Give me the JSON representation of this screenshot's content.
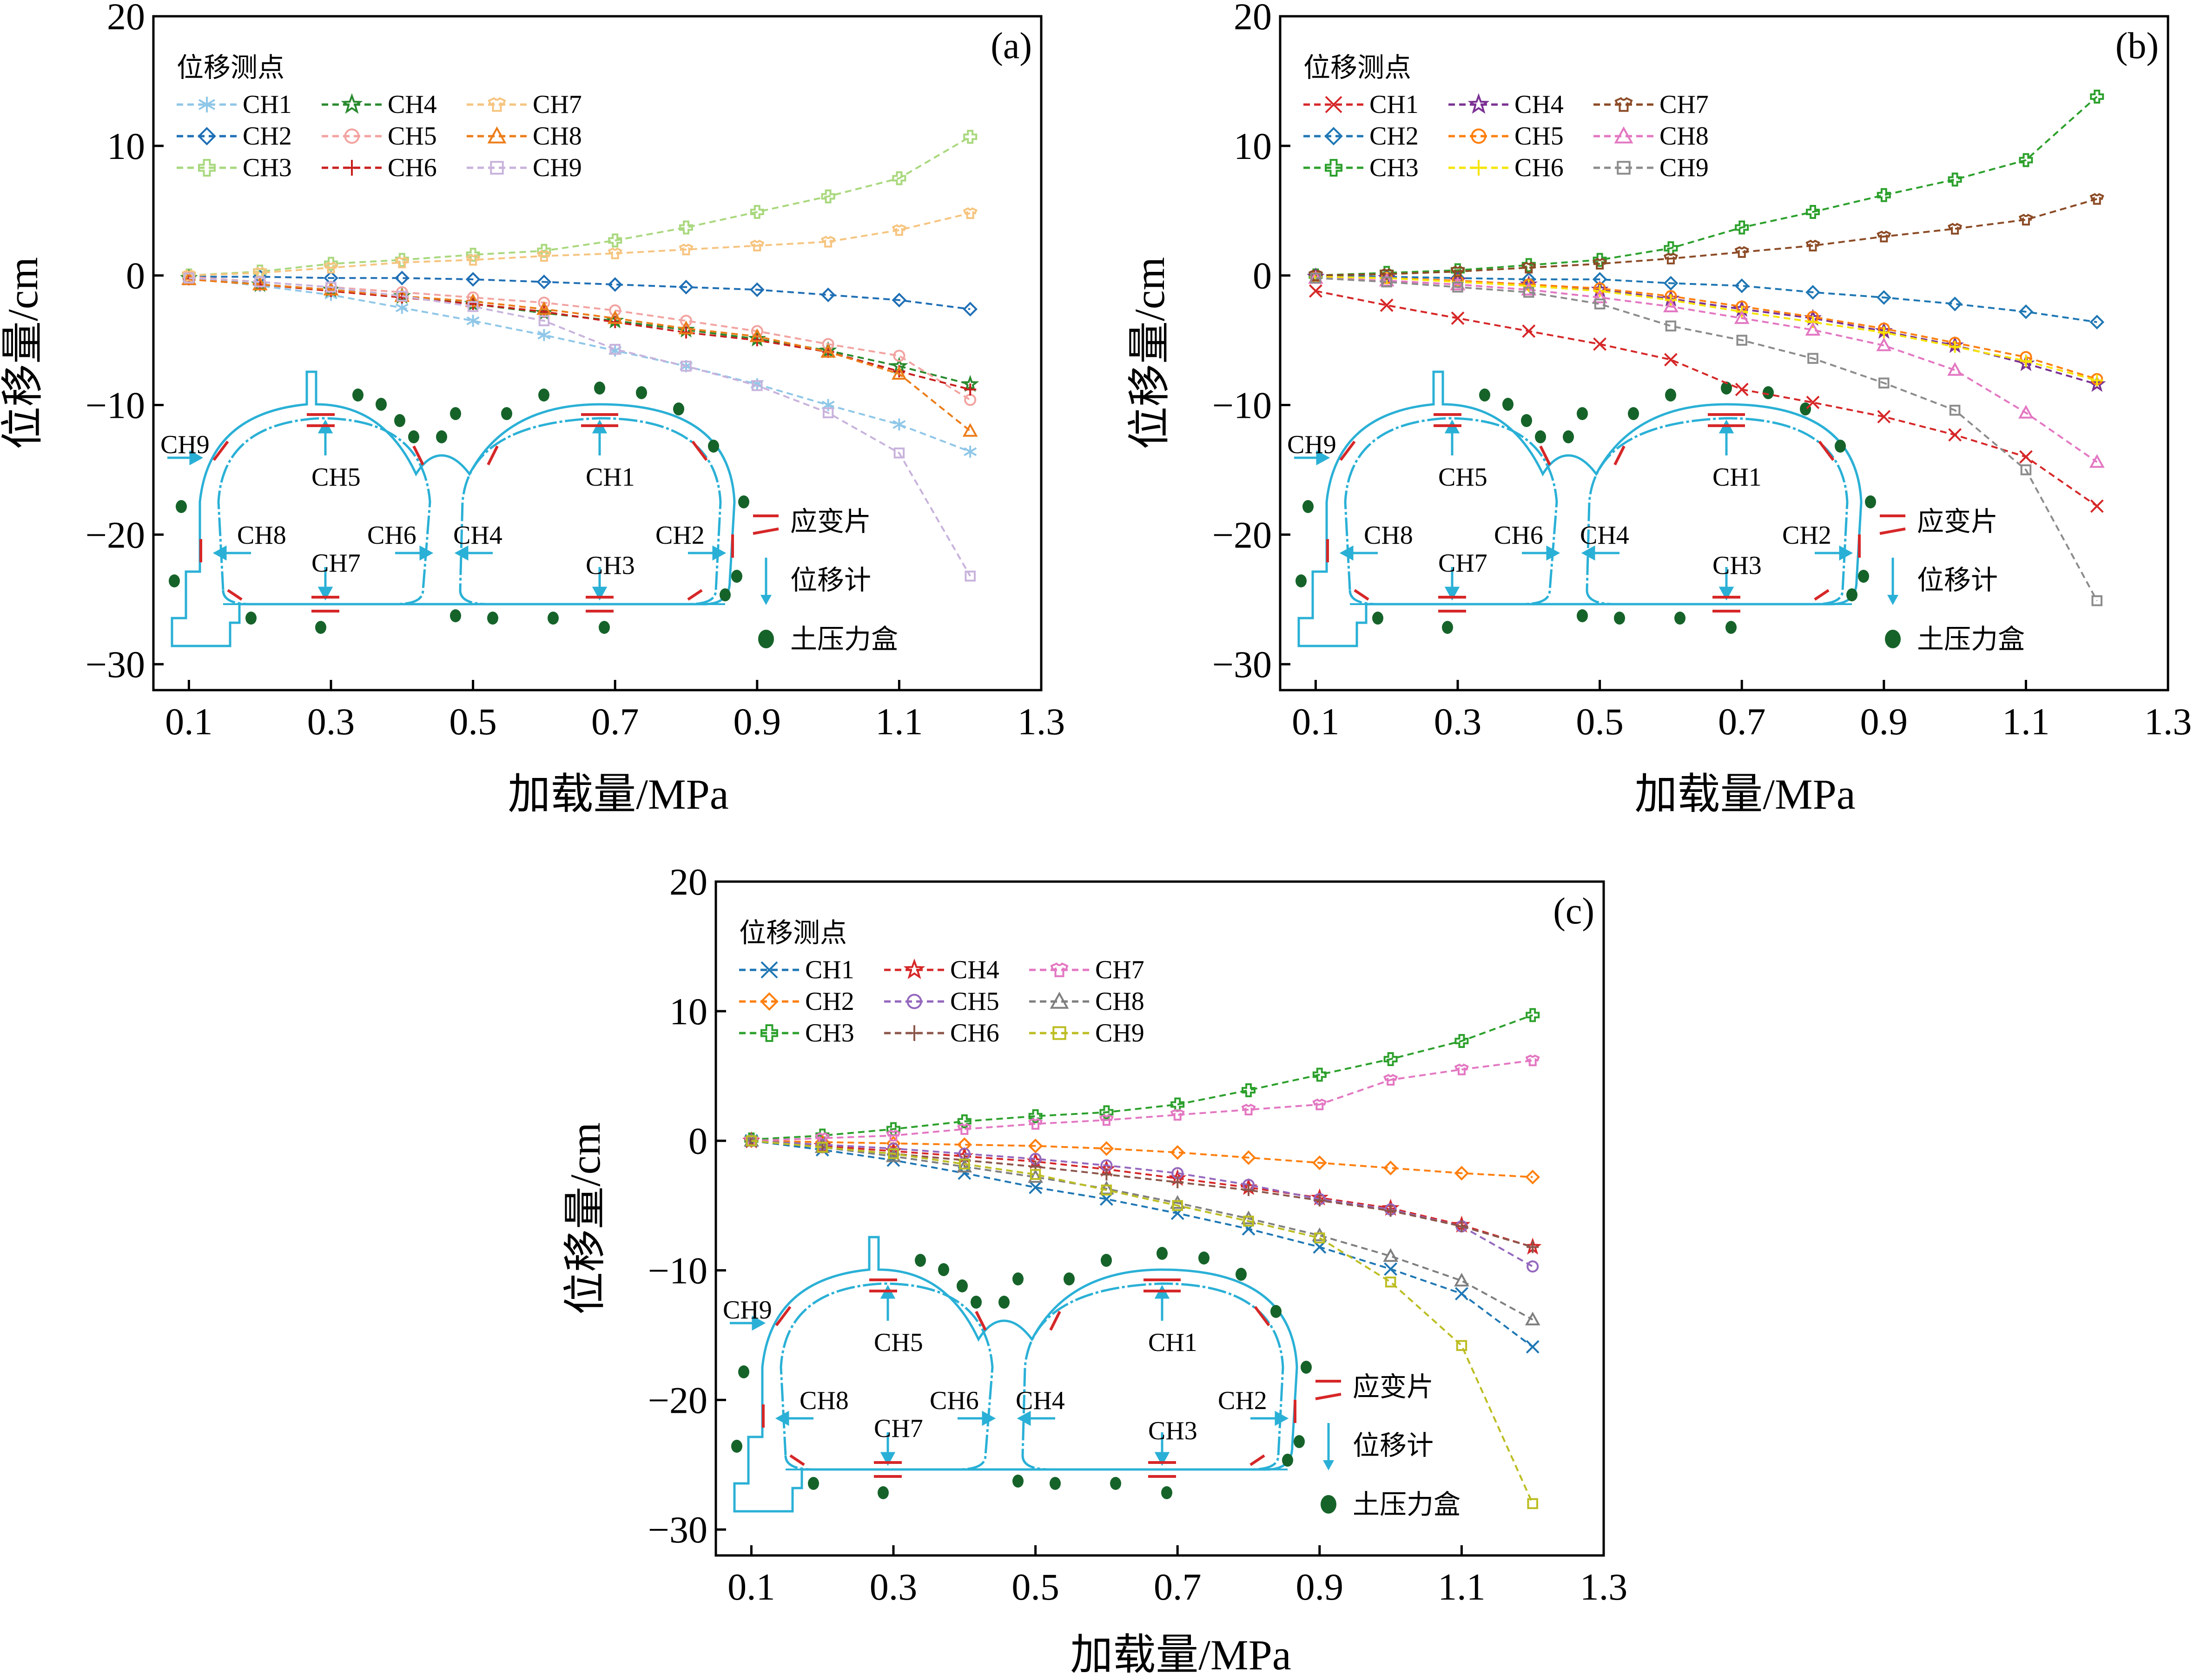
{
  "chart_data": [
    {
      "panel": "(a)",
      "type": "line",
      "xlabel": "加载量/MPa",
      "ylabel": "位移量/cm",
      "xlim": [
        0.05,
        1.3
      ],
      "ylim": [
        -32,
        20
      ],
      "xticks": [
        "0.1",
        "0.3",
        "0.5",
        "0.7",
        "0.9",
        "1.1",
        "1.3"
      ],
      "yticks": [
        "20",
        "10",
        "0",
        "−10",
        "−20",
        "−30"
      ],
      "legend_title": "位移测点",
      "x": [
        0.1,
        0.2,
        0.3,
        0.4,
        0.5,
        0.6,
        0.7,
        0.8,
        0.9,
        1.0,
        1.1,
        1.2
      ],
      "series": [
        {
          "name": "CH1",
          "color": "#8fc7e8",
          "marker": "asterisk",
          "values": [
            -0.2,
            -0.8,
            -1.5,
            -2.5,
            -3.5,
            -4.6,
            -5.8,
            -7.0,
            -8.4,
            -10.0,
            -11.5,
            -13.6
          ]
        },
        {
          "name": "CH2",
          "color": "#1f6fb5",
          "marker": "diamond",
          "values": [
            -0.1,
            -0.1,
            -0.2,
            -0.2,
            -0.3,
            -0.5,
            -0.7,
            -0.9,
            -1.1,
            -1.5,
            -1.9,
            -2.6
          ]
        },
        {
          "name": "CH3",
          "color": "#a9d87e",
          "marker": "plus",
          "values": [
            0.0,
            0.3,
            0.9,
            1.2,
            1.6,
            1.9,
            2.7,
            3.7,
            4.9,
            6.1,
            7.5,
            10.7
          ]
        },
        {
          "name": "CH4",
          "color": "#2a8a2f",
          "marker": "star",
          "values": [
            -0.2,
            -0.7,
            -1.1,
            -1.6,
            -2.2,
            -2.9,
            -3.5,
            -4.2,
            -4.9,
            -5.8,
            -7.0,
            -8.4
          ]
        },
        {
          "name": "CH5",
          "color": "#f2a3a0",
          "marker": "circle",
          "values": [
            -0.1,
            -0.5,
            -0.9,
            -1.3,
            -1.7,
            -2.1,
            -2.7,
            -3.5,
            -4.3,
            -5.3,
            -6.2,
            -9.6
          ]
        },
        {
          "name": "CH6",
          "color": "#c7201e",
          "marker": "plus-thin",
          "values": [
            -0.3,
            -0.7,
            -1.2,
            -1.7,
            -2.2,
            -2.8,
            -3.6,
            -4.4,
            -5.0,
            -5.9,
            -7.4,
            -8.8
          ]
        },
        {
          "name": "CH7",
          "color": "#f6c47f",
          "marker": "tshirt",
          "values": [
            0.0,
            0.2,
            0.6,
            1.0,
            1.2,
            1.5,
            1.7,
            2.0,
            2.3,
            2.6,
            3.5,
            4.8
          ]
        },
        {
          "name": "CH8",
          "color": "#ec7d1a",
          "marker": "triangle",
          "values": [
            -0.3,
            -0.7,
            -1.1,
            -1.6,
            -2.0,
            -2.6,
            -3.3,
            -4.1,
            -4.7,
            -5.9,
            -7.6,
            -12.0
          ]
        },
        {
          "name": "CH9",
          "color": "#c8b3dc",
          "marker": "square",
          "values": [
            -0.2,
            -0.5,
            -0.9,
            -1.6,
            -2.4,
            -3.5,
            -5.7,
            -7.0,
            -8.5,
            -10.6,
            -13.7,
            -23.2
          ]
        }
      ]
    },
    {
      "panel": "(b)",
      "type": "line",
      "xlabel": "加载量/MPa",
      "ylabel": "位移量/cm",
      "xlim": [
        0.05,
        1.3
      ],
      "ylim": [
        -32,
        20
      ],
      "xticks": [
        "0.1",
        "0.3",
        "0.5",
        "0.7",
        "0.9",
        "1.1",
        "1.3"
      ],
      "yticks": [
        "20",
        "10",
        "0",
        "−10",
        "−20",
        "−30"
      ],
      "legend_title": "位移测点",
      "x": [
        0.1,
        0.2,
        0.3,
        0.4,
        0.5,
        0.6,
        0.7,
        0.8,
        0.9,
        1.0,
        1.1,
        1.2
      ],
      "series": [
        {
          "name": "CH1",
          "color": "#d62728",
          "marker": "x",
          "values": [
            -1.2,
            -2.3,
            -3.3,
            -4.3,
            -5.3,
            -6.5,
            -8.8,
            -9.8,
            -10.9,
            -12.3,
            -14.0,
            -17.8
          ]
        },
        {
          "name": "CH2",
          "color": "#1f77b4",
          "marker": "diamond",
          "values": [
            0.0,
            -0.1,
            -0.2,
            -0.3,
            -0.3,
            -0.6,
            -0.8,
            -1.3,
            -1.7,
            -2.2,
            -2.8,
            -3.6
          ]
        },
        {
          "name": "CH3",
          "color": "#2ca02c",
          "marker": "plus",
          "values": [
            0.0,
            0.2,
            0.4,
            0.8,
            1.2,
            2.1,
            3.7,
            4.9,
            6.2,
            7.4,
            8.9,
            13.8
          ]
        },
        {
          "name": "CH4",
          "color": "#7b3294",
          "marker": "star",
          "values": [
            -0.1,
            -0.2,
            -0.4,
            -0.7,
            -1.1,
            -1.8,
            -2.6,
            -3.3,
            -4.3,
            -5.4,
            -6.8,
            -8.4
          ]
        },
        {
          "name": "CH5",
          "color": "#ff7f0e",
          "marker": "circle",
          "values": [
            -0.1,
            -0.2,
            -0.4,
            -0.7,
            -1.0,
            -1.6,
            -2.4,
            -3.2,
            -4.1,
            -5.2,
            -6.3,
            -8.0
          ]
        },
        {
          "name": "CH6",
          "color": "#f5e400",
          "marker": "plus-thin",
          "values": [
            -0.1,
            -0.2,
            -0.5,
            -0.8,
            -1.2,
            -1.9,
            -2.8,
            -3.6,
            -4.4,
            -5.5,
            -6.6,
            -8.1
          ]
        },
        {
          "name": "CH7",
          "color": "#8c4b26",
          "marker": "tshirt",
          "values": [
            0.0,
            0.1,
            0.3,
            0.6,
            0.9,
            1.3,
            1.8,
            2.3,
            3.0,
            3.6,
            4.3,
            5.9
          ]
        },
        {
          "name": "CH8",
          "color": "#e377c2",
          "marker": "triangle",
          "values": [
            -0.2,
            -0.4,
            -0.7,
            -1.1,
            -1.7,
            -2.4,
            -3.3,
            -4.2,
            -5.4,
            -7.3,
            -10.6,
            -14.4
          ]
        },
        {
          "name": "CH9",
          "color": "#8c8c8c",
          "marker": "square",
          "values": [
            -0.2,
            -0.5,
            -0.9,
            -1.3,
            -2.2,
            -3.9,
            -5.0,
            -6.4,
            -8.3,
            -10.4,
            -15.0,
            -25.1
          ]
        }
      ]
    },
    {
      "panel": "(c)",
      "type": "line",
      "xlabel": "加载量/MPa",
      "ylabel": "位移量/cm",
      "xlim": [
        0.05,
        1.3
      ],
      "ylim": [
        -32,
        20
      ],
      "xticks": [
        "0.1",
        "0.3",
        "0.5",
        "0.7",
        "0.9",
        "1.1",
        "1.3"
      ],
      "yticks": [
        "20",
        "10",
        "0",
        "−10",
        "−20",
        "−30"
      ],
      "legend_title": "位移测点",
      "x": [
        0.1,
        0.2,
        0.3,
        0.4,
        0.5,
        0.6,
        0.7,
        0.8,
        0.9,
        1.0,
        1.1,
        1.2
      ],
      "series": [
        {
          "name": "CH1",
          "color": "#1f77b4",
          "marker": "x",
          "values": [
            0.0,
            -0.7,
            -1.5,
            -2.5,
            -3.6,
            -4.5,
            -5.6,
            -6.8,
            -8.2,
            -9.9,
            -11.8,
            -15.9
          ]
        },
        {
          "name": "CH2",
          "color": "#ff7f0e",
          "marker": "diamond",
          "values": [
            0.0,
            -0.1,
            -0.2,
            -0.3,
            -0.4,
            -0.6,
            -0.9,
            -1.3,
            -1.7,
            -2.1,
            -2.5,
            -2.8
          ]
        },
        {
          "name": "CH3",
          "color": "#2ca02c",
          "marker": "plus",
          "values": [
            0.1,
            0.4,
            0.9,
            1.5,
            1.9,
            2.2,
            2.8,
            3.9,
            5.1,
            6.3,
            7.7,
            9.7
          ]
        },
        {
          "name": "CH4",
          "color": "#d62728",
          "marker": "star",
          "values": [
            0.0,
            -0.4,
            -0.8,
            -1.2,
            -1.6,
            -2.2,
            -2.9,
            -3.6,
            -4.4,
            -5.2,
            -6.5,
            -8.2
          ]
        },
        {
          "name": "CH5",
          "color": "#9467bd",
          "marker": "circle",
          "values": [
            0.0,
            -0.3,
            -0.6,
            -1.0,
            -1.4,
            -1.9,
            -2.5,
            -3.4,
            -4.5,
            -5.3,
            -6.6,
            -9.7
          ]
        },
        {
          "name": "CH6",
          "color": "#8c564b",
          "marker": "plus-thin",
          "values": [
            0.0,
            -0.5,
            -1.0,
            -1.5,
            -2.0,
            -2.6,
            -3.2,
            -3.8,
            -4.6,
            -5.4,
            -6.6,
            -8.2
          ]
        },
        {
          "name": "CH7",
          "color": "#e377c2",
          "marker": "tshirt",
          "values": [
            0.0,
            0.2,
            0.4,
            0.9,
            1.3,
            1.6,
            2.0,
            2.4,
            2.8,
            4.7,
            5.5,
            6.2
          ]
        },
        {
          "name": "CH8",
          "color": "#7f7f7f",
          "marker": "triangle",
          "values": [
            0.0,
            -0.5,
            -1.2,
            -2.0,
            -2.8,
            -3.7,
            -4.8,
            -6.0,
            -7.3,
            -8.9,
            -10.8,
            -13.8
          ]
        },
        {
          "name": "CH9",
          "color": "#bcbd22",
          "marker": "square",
          "values": [
            0.0,
            -0.5,
            -1.0,
            -1.8,
            -2.6,
            -3.8,
            -5.0,
            -6.2,
            -7.5,
            -10.9,
            -15.8,
            -28.0
          ]
        }
      ]
    }
  ],
  "inset": {
    "labels": [
      "CH9",
      "CH5",
      "CH1",
      "CH8",
      "CH7",
      "CH6",
      "CH4",
      "CH3",
      "CH2"
    ],
    "legend": {
      "strain_gauge": "应变片",
      "displacement_meter": "位移计",
      "pressure_cell": "土压力盒"
    },
    "colors": {
      "lining": "#2ab0d6",
      "gauge": "#d62728",
      "cell": "#16632a",
      "arrow": "#2ab0d6"
    }
  }
}
